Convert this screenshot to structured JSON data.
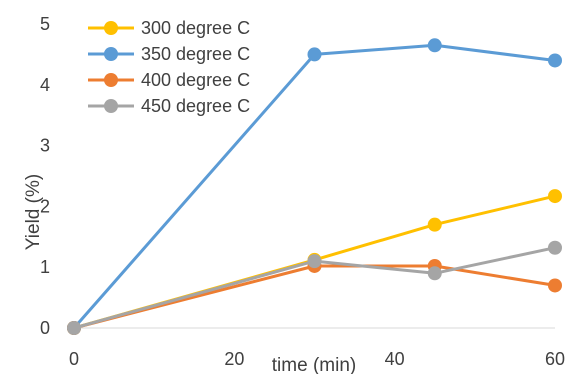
{
  "chart_data": {
    "type": "line",
    "title": "",
    "xlabel": "time (min)",
    "ylabel": "Yield (%)",
    "xlim": [
      0,
      60
    ],
    "ylim": [
      0,
      5
    ],
    "x_ticks": [
      0,
      20,
      40,
      60
    ],
    "y_ticks": [
      0,
      1,
      2,
      3,
      4,
      5
    ],
    "grid": false,
    "legend_position": "top-left",
    "series": [
      {
        "name": "300 degree C",
        "color": "#FFC000",
        "x": [
          0,
          30,
          45,
          60
        ],
        "y": [
          0,
          1.12,
          1.7,
          2.17
        ]
      },
      {
        "name": "350 degree C",
        "color": "#5B9BD5",
        "x": [
          0,
          30,
          45,
          60
        ],
        "y": [
          0,
          4.5,
          4.65,
          4.4
        ]
      },
      {
        "name": "400 degree C",
        "color": "#ED7D31",
        "x": [
          0,
          30,
          45,
          60
        ],
        "y": [
          0,
          1.02,
          1.02,
          0.7
        ]
      },
      {
        "name": "450 degree C",
        "color": "#A5A5A5",
        "x": [
          0,
          30,
          45,
          60
        ],
        "y": [
          0,
          1.1,
          0.9,
          1.32
        ]
      }
    ]
  }
}
